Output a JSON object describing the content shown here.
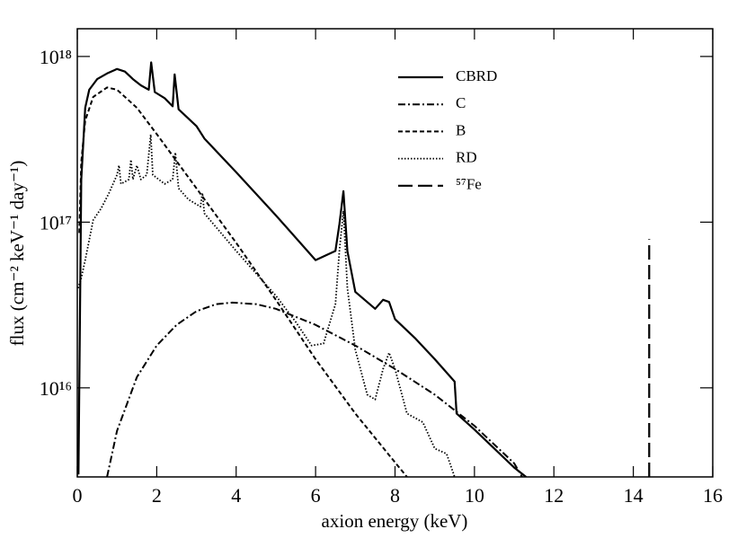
{
  "chart_data": {
    "type": "line",
    "xlabel": "axion energy (keV)",
    "ylabel": "flux (cm⁻² keV⁻¹ day⁻¹)",
    "xlim": [
      0,
      16
    ],
    "xticks": [
      0,
      2,
      4,
      6,
      8,
      10,
      12,
      14,
      16
    ],
    "ylim": [
      2900000000000000.0,
      1.47e+18
    ],
    "yscale": "log",
    "yticks": [
      {
        "value": 1e+16,
        "label": "10¹⁶"
      },
      {
        "value": 1e+17,
        "label": "10¹⁷"
      },
      {
        "value": 1e+18,
        "label": "10¹⁸"
      }
    ],
    "grid": false,
    "legend": "upper right",
    "series": [
      {
        "name": "CBRD",
        "color": "#000000",
        "line_style": "solid",
        "x": [
          0.03,
          0.1,
          0.2,
          0.3,
          0.5,
          0.75,
          1.0,
          1.2,
          1.4,
          1.6,
          1.8,
          1.86,
          1.95,
          2.2,
          2.4,
          2.45,
          2.55,
          3.0,
          3.2,
          4.0,
          5.0,
          6.0,
          6.5,
          6.6,
          6.7,
          6.8,
          7.0,
          7.5,
          7.7,
          7.85,
          8.0,
          8.5,
          9.0,
          9.5,
          9.55,
          10.0,
          11.0,
          11.3
        ],
        "values": [
          3000000000000000.0,
          1.8e+17,
          4.9e+17,
          6.3e+17,
          7.3e+17,
          7.9e+17,
          8.4e+17,
          8.1e+17,
          7.3e+17,
          6.7e+17,
          6.3e+17,
          9.2e+17,
          6.1e+17,
          5.6e+17,
          5e+17,
          7.8e+17,
          4.8e+17,
          3.8e+17,
          3.2e+17,
          2e+17,
          1.1e+17,
          5.9e+16,
          6.7e+16,
          9.7e+16,
          1.54e+17,
          6.7e+16,
          3.8e+16,
          3e+16,
          3.4e+16,
          3.3e+16,
          2.6e+16,
          2e+16,
          1.49e+16,
          1.09e+16,
          7000000000000000.0,
          5600000000000000.0,
          3300000000000000.0,
          2900000000000000.0
        ]
      },
      {
        "name": "C",
        "color": "#000000",
        "line_style": "dashdot",
        "x": [
          0.75,
          1.0,
          1.5,
          2.0,
          2.5,
          3.0,
          3.5,
          3.9,
          4.5,
          5.0,
          6.0,
          7.0,
          8.0,
          9.0,
          10.0,
          11.0,
          11.2
        ],
        "values": [
          2900000000000000.0,
          5500000000000000.0,
          1.16e+16,
          1.8e+16,
          2.4e+16,
          2.9e+16,
          3.2e+16,
          3.27e+16,
          3.2e+16,
          3e+16,
          2.4e+16,
          1.8e+16,
          1.3e+16,
          9100000000000000.0,
          5900000000000000.0,
          3500000000000000.0,
          2900000000000000.0
        ]
      },
      {
        "name": "B",
        "color": "#000000",
        "line_style": "dashed",
        "x": [
          0.05,
          0.1,
          0.2,
          0.4,
          0.75,
          1.0,
          1.5,
          2.0,
          3.0,
          4.0,
          5.0,
          6.0,
          7.0,
          8.0,
          8.3
        ],
        "values": [
          8.6e+16,
          2.3e+17,
          4.1e+17,
          5.7e+17,
          6.5e+17,
          6.3e+17,
          4.9e+17,
          3.4e+17,
          1.6e+17,
          7.5e+16,
          3.4e+16,
          1.49e+16,
          7000000000000000.0,
          3550000000000000.0,
          2900000000000000.0
        ]
      },
      {
        "name": "RD",
        "color": "#000000",
        "line_style": "dotted",
        "x": [
          0.02,
          0.1,
          0.2,
          0.4,
          0.6,
          0.8,
          1.0,
          1.05,
          1.1,
          1.3,
          1.35,
          1.4,
          1.5,
          1.6,
          1.75,
          1.85,
          1.9,
          2.0,
          2.2,
          2.4,
          2.47,
          2.55,
          2.8,
          3.1,
          3.15,
          3.2,
          4.0,
          5.0,
          5.5,
          5.9,
          6.2,
          6.5,
          6.6,
          6.7,
          6.8,
          7.0,
          7.3,
          7.5,
          7.7,
          7.85,
          8.0,
          8.3,
          8.7,
          9.0,
          9.3,
          9.5
        ],
        "values": [
          4e+16,
          4.6e+16,
          5.9e+16,
          1.03e+17,
          1.21e+17,
          1.5e+17,
          1.93e+17,
          2.2e+17,
          1.7e+17,
          1.81e+17,
          2.38e+17,
          1.81e+17,
          2.2e+17,
          1.81e+17,
          1.93e+17,
          3.38e+17,
          1.93e+17,
          1.85e+17,
          1.7e+17,
          1.81e+17,
          2.63e+17,
          1.6e+17,
          1.37e+17,
          1.24e+17,
          1.5e+17,
          1.13e+17,
          6.7e+16,
          3.6e+16,
          2.5e+16,
          1.8e+16,
          1.85e+16,
          3.2e+16,
          6.7e+16,
          1.17e+17,
          4e+16,
          1.7e+16,
          9100000000000000.0,
          8500000000000000.0,
          1.3e+16,
          1.63e+16,
          1.3e+16,
          7000000000000000.0,
          6200000000000000.0,
          4300000000000000.0,
          4000000000000000.0,
          2900000000000000.0
        ]
      },
      {
        "name": "⁵⁷Fe",
        "color": "#000000",
        "line_style": "longdash",
        "x": [
          14.4,
          14.4
        ],
        "values": [
          2900000000000000.0,
          7.9e+16
        ]
      }
    ]
  }
}
